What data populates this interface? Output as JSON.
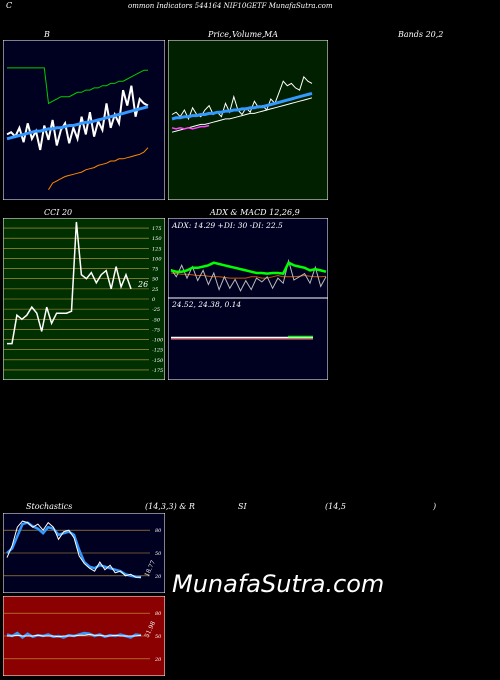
{
  "header": {
    "left_letter": "C",
    "title": "ommon  Indicators 544164  NIF10GETF MunafaSutra.com"
  },
  "labels": {
    "bands_b": "B",
    "price_volume_ma_1": "Price,",
    "price_volume_ma_2": "Volume,",
    "price_volume_ma_3": "MA",
    "bands_right": "Bands 20,2",
    "cci": "CCI 20",
    "adx_macd": "ADX  & MACD 12,26,9",
    "stoch_left": "Stochastics",
    "stoch_mid": "(14,3,3) & R",
    "rsi_si": "SI",
    "rsi_params": "(14,5",
    "rsi_close": ")"
  },
  "watermark": "MunafaSutra.com",
  "colors": {
    "bb_bg": "#000020",
    "price_bg": "#002000",
    "cci_bg": "#003000",
    "adx_bg": "#000020",
    "stoch_bg": "#000020",
    "rsi_bg": "#8b0000"
  },
  "chart_data": [
    {
      "type": "line",
      "name": "bollinger",
      "x": [
        1,
        2,
        3,
        4,
        5,
        6,
        7,
        8,
        9,
        10,
        11,
        12,
        13,
        14,
        15,
        16,
        17,
        18,
        19,
        20,
        21,
        22,
        23,
        24,
        25,
        26,
        27,
        28,
        29,
        30,
        31,
        32,
        33,
        34,
        35
      ],
      "series": [
        {
          "color": "#ffffff",
          "values": [
            52,
            54,
            50,
            58,
            45,
            62,
            48,
            55,
            38,
            60,
            47,
            65,
            42,
            56,
            62,
            44,
            58,
            48,
            68,
            52,
            72,
            50,
            64,
            56,
            80,
            58,
            70,
            62,
            92,
            78,
            96,
            68,
            84,
            80,
            78
          ]
        },
        {
          "color": "#00cc00",
          "values": [
            112,
            112,
            112,
            112,
            112,
            112,
            112,
            112,
            112,
            112,
            80,
            82,
            84,
            86,
            86,
            86,
            88,
            90,
            90,
            92,
            92,
            94,
            94,
            96,
            96,
            98,
            98,
            100,
            100,
            102,
            104,
            106,
            108,
            110,
            110
          ]
        },
        {
          "color": "#3399ff",
          "values": [
            48,
            49,
            50,
            51,
            52,
            53,
            54,
            55,
            55,
            56,
            57,
            57,
            58,
            58,
            59,
            60,
            60,
            61,
            62,
            63,
            63,
            64,
            65,
            66,
            67,
            68,
            69,
            70,
            71,
            72,
            73,
            74,
            75,
            76,
            77
          ]
        },
        {
          "color": "#ff8800",
          "values": [
            null,
            null,
            null,
            null,
            null,
            null,
            null,
            null,
            null,
            null,
            2,
            8,
            10,
            12,
            14,
            15,
            16,
            17,
            18,
            20,
            21,
            22,
            24,
            25,
            26,
            28,
            28,
            30,
            30,
            31,
            32,
            33,
            34,
            36,
            40
          ]
        }
      ],
      "ylim": [
        0,
        130
      ]
    },
    {
      "type": "line",
      "name": "price-volume-ma",
      "x": [
        1,
        2,
        3,
        4,
        5,
        6,
        7,
        8,
        9,
        10,
        11,
        12,
        13,
        14,
        15,
        16,
        17,
        18,
        19,
        20,
        21,
        22,
        23,
        24,
        25,
        26,
        27,
        28,
        29,
        30,
        31,
        32,
        33,
        34,
        35
      ],
      "series": [
        {
          "color": "#ffffff",
          "values": [
            70,
            72,
            68,
            74,
            66,
            76,
            70,
            68,
            74,
            78,
            70,
            72,
            68,
            80,
            72,
            86,
            74,
            70,
            76,
            72,
            82,
            76,
            78,
            74,
            84,
            80,
            90,
            100,
            96,
            98,
            94,
            92,
            104,
            100,
            98
          ]
        },
        {
          "color": "#3399ff",
          "values": [
            66,
            67,
            67,
            68,
            68,
            69,
            69,
            70,
            70,
            71,
            71,
            72,
            72,
            73,
            73,
            74,
            74,
            75,
            75,
            76,
            76,
            77,
            77,
            78,
            79,
            80,
            81,
            82,
            83,
            84,
            85,
            86,
            87,
            88,
            89
          ]
        },
        {
          "color": "#ffffff",
          "values": [
            54,
            55,
            56,
            57,
            58,
            59,
            60,
            61,
            61,
            62,
            63,
            64,
            65,
            66,
            66,
            67,
            68,
            69,
            70,
            71,
            71,
            72,
            73,
            74,
            75,
            76,
            77,
            78,
            79,
            80,
            81,
            82,
            83,
            84,
            85
          ]
        },
        {
          "color": "#ff44ff",
          "values": [
            58,
            57,
            58,
            57,
            58,
            57,
            58,
            59,
            59,
            60,
            null,
            null,
            null,
            null,
            null,
            null,
            null,
            null,
            null,
            null,
            null,
            null,
            null,
            null,
            null,
            null,
            null,
            null,
            null,
            null,
            null,
            null,
            null,
            null,
            null
          ]
        }
      ],
      "ylim": [
        0,
        130
      ]
    },
    {
      "type": "line",
      "name": "cci",
      "title": "CCI 20",
      "ticks": [
        175,
        150,
        125,
        100,
        75,
        50,
        25,
        0,
        -25,
        -50,
        -75,
        -100,
        -125,
        -150,
        -175
      ],
      "x": [
        1,
        2,
        3,
        4,
        5,
        6,
        7,
        8,
        9,
        10,
        11,
        12,
        13,
        14,
        15,
        16,
        17,
        18,
        19,
        20,
        21,
        22,
        23,
        24,
        25,
        26
      ],
      "values": [
        -110,
        -110,
        -40,
        -50,
        -40,
        -20,
        -35,
        -80,
        -20,
        -60,
        -35,
        -35,
        -35,
        -30,
        190,
        60,
        50,
        65,
        40,
        60,
        70,
        25,
        80,
        30,
        60,
        25
      ],
      "last_label": "26",
      "ylim": [
        -185,
        185
      ]
    },
    {
      "type": "line",
      "name": "adx",
      "text": "ADX: 14.29  +DI: 30  -DI: 22.5",
      "x": [
        1,
        2,
        3,
        4,
        5,
        6,
        7,
        8,
        9,
        10,
        11,
        12,
        13,
        14,
        15,
        16,
        17,
        18,
        19,
        20,
        21,
        22,
        23,
        24,
        25,
        26,
        27,
        28,
        29,
        30
      ],
      "series": [
        {
          "color": "#00ff00",
          "values": [
            40,
            38,
            38,
            40,
            44,
            44,
            46,
            48,
            52,
            50,
            48,
            46,
            44,
            42,
            40,
            38,
            36,
            36,
            35,
            36,
            36,
            35,
            52,
            48,
            46,
            44,
            40,
            42,
            40,
            38
          ]
        },
        {
          "color": "#bbbbbb",
          "values": [
            42,
            30,
            48,
            28,
            46,
            24,
            40,
            18,
            36,
            10,
            30,
            12,
            26,
            8,
            24,
            10,
            28,
            22,
            30,
            12,
            28,
            20,
            55,
            25,
            30,
            35,
            20,
            45,
            15,
            30
          ]
        },
        {
          "color": "#cc5500",
          "values": [
            36,
            35,
            34,
            34,
            33,
            32,
            32,
            31,
            30,
            30,
            29,
            28,
            28,
            28,
            28,
            30,
            30,
            28,
            28,
            30,
            32,
            30,
            30,
            30,
            31,
            32,
            31,
            30,
            30,
            31
          ]
        }
      ],
      "ylim": [
        0,
        100
      ]
    },
    {
      "type": "line",
      "name": "macd",
      "text": "24.52,  24.38,  0.14",
      "values": [
        0,
        0.14
      ],
      "ylim": [
        -1,
        1
      ]
    },
    {
      "type": "line",
      "name": "stochastics",
      "ticks": [
        80,
        50,
        20
      ],
      "x": [
        1,
        2,
        3,
        4,
        5,
        6,
        7,
        8,
        9,
        10,
        11,
        12,
        13,
        14,
        15,
        16,
        17,
        18,
        19,
        20,
        21,
        22,
        23,
        24,
        25,
        26,
        27
      ],
      "series": [
        {
          "color": "#3399ff",
          "values": [
            50,
            56,
            72,
            88,
            90,
            85,
            82,
            76,
            84,
            82,
            74,
            76,
            78,
            74,
            54,
            38,
            32,
            30,
            34,
            32,
            30,
            28,
            26,
            22,
            20,
            19,
            18
          ]
        },
        {
          "color": "#ffffff",
          "values": [
            44,
            60,
            84,
            92,
            90,
            84,
            88,
            80,
            90,
            84,
            68,
            78,
            80,
            70,
            46,
            36,
            30,
            26,
            38,
            28,
            34,
            24,
            26,
            20,
            22,
            18,
            18
          ]
        }
      ],
      "value_label": "18.77",
      "ylim": [
        0,
        100
      ]
    },
    {
      "type": "line",
      "name": "rsi",
      "ticks": [
        80,
        50,
        20
      ],
      "x": [
        1,
        2,
        3,
        4,
        5,
        6,
        7,
        8,
        9,
        10,
        11,
        12,
        13,
        14,
        15,
        16,
        17,
        18,
        19,
        20,
        21,
        22,
        23,
        24,
        25,
        26,
        27
      ],
      "series": [
        {
          "color": "#3399ff",
          "values": [
            52,
            50,
            54,
            48,
            53,
            49,
            51,
            50,
            52,
            49,
            50,
            48,
            51,
            50,
            52,
            54,
            53,
            50,
            52,
            49,
            51,
            50,
            52,
            50,
            48,
            52,
            51
          ]
        },
        {
          "color": "#ffffff",
          "values": [
            50,
            50,
            51,
            50,
            50,
            50,
            51,
            50,
            50,
            50,
            49,
            50,
            50,
            50,
            51,
            51,
            52,
            51,
            51,
            50,
            50,
            51,
            50,
            50,
            50,
            50,
            51
          ]
        }
      ],
      "value_label": "51.98",
      "ylim": [
        0,
        100
      ]
    }
  ]
}
